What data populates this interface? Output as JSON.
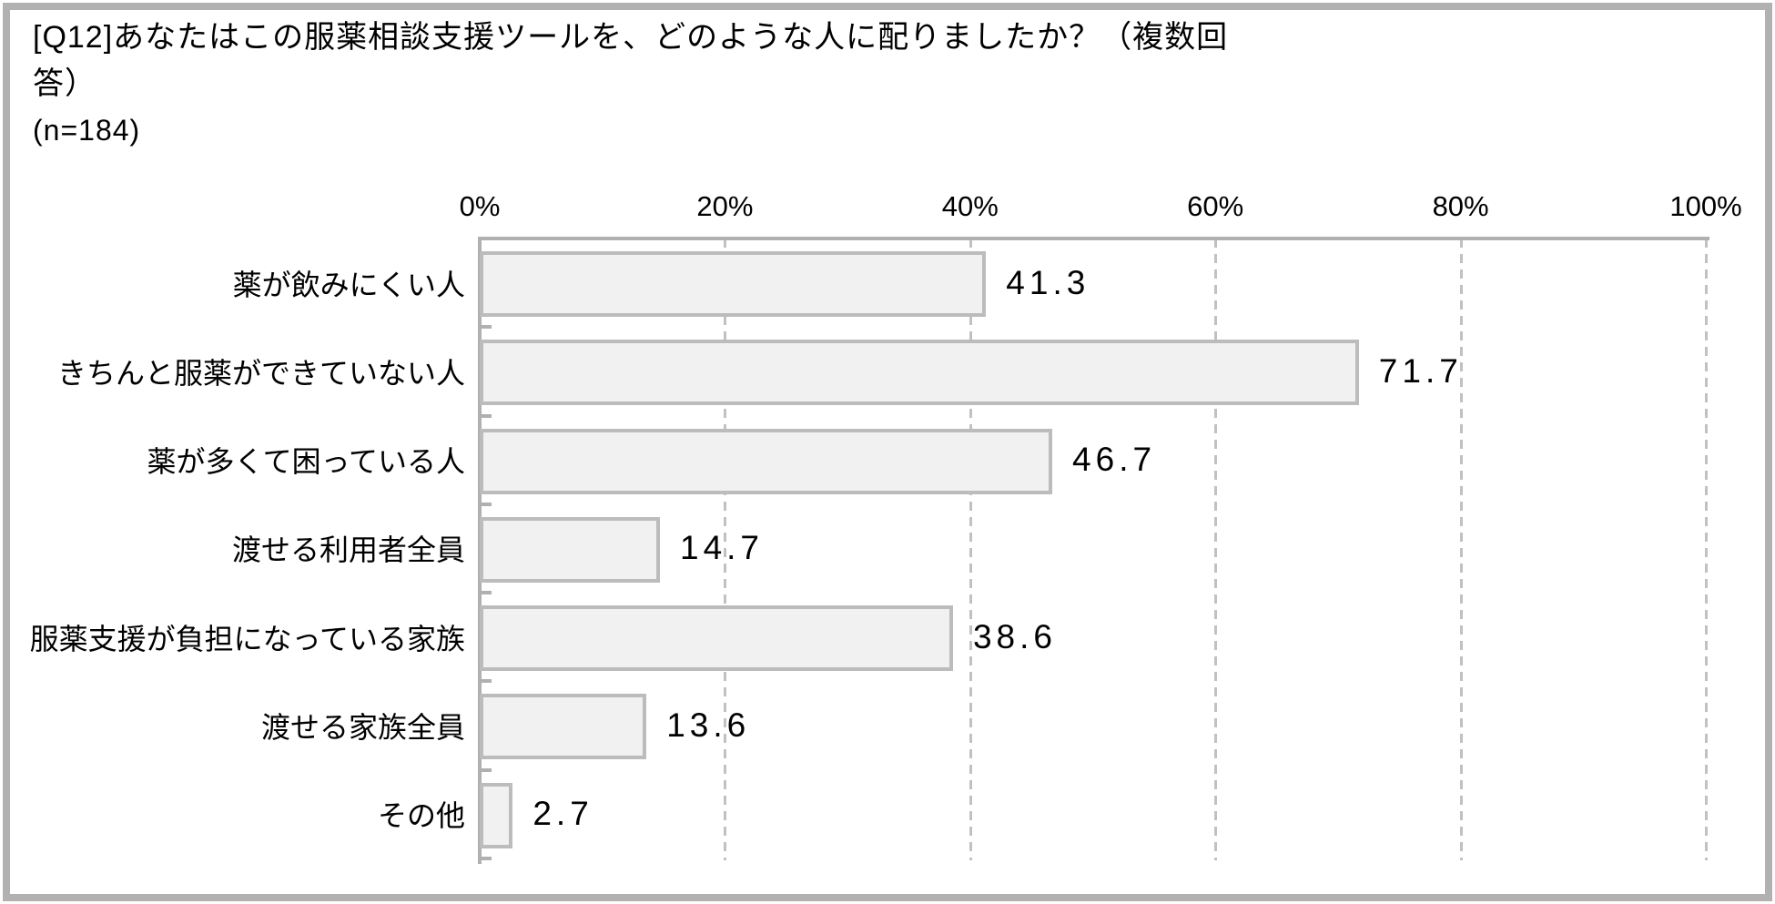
{
  "header": {
    "title_lines": [
      "[Q12]あなたはこの服薬相談支援ツールを、どのような人に配りましたか？（複数回",
      "答）"
    ],
    "sample_size": "(n=184)"
  },
  "chart_data": {
    "type": "bar",
    "orientation": "horizontal",
    "title": "[Q12]あなたはこの服薬相談支援ツールを、どのような人に配りましたか？（複数回答）",
    "sample_n": 184,
    "categories": [
      "薬が飲みにくい人",
      "きちんと服薬ができていない人",
      "薬が多くて困っている人",
      "渡せる利用者全員",
      "服薬支援が負担になっている家族",
      "渡せる家族全員",
      "その他"
    ],
    "values": [
      41.3,
      71.7,
      46.7,
      14.7,
      38.6,
      13.6,
      2.7
    ],
    "value_labels": [
      "41.3",
      "71.7",
      "46.7",
      "14.7",
      "38.6",
      "13.6",
      "2.7"
    ],
    "x_axis": {
      "position": "top",
      "min": 0,
      "max": 100,
      "tick_labels": [
        "0%",
        "20%",
        "40%",
        "60%",
        "80%",
        "100%"
      ],
      "tick_values": [
        0,
        20,
        40,
        60,
        80,
        100
      ]
    },
    "grid": "vertical-dashed",
    "legend": "none",
    "colors": {
      "bar_fill": "#f1f1f1",
      "bar_border": "#bcbcbc",
      "gridline": "#c1c1c1",
      "axis_line": "#b0b0b0",
      "text": "#000000",
      "frame": "#b1b1b1",
      "background": "#ffffff"
    }
  }
}
